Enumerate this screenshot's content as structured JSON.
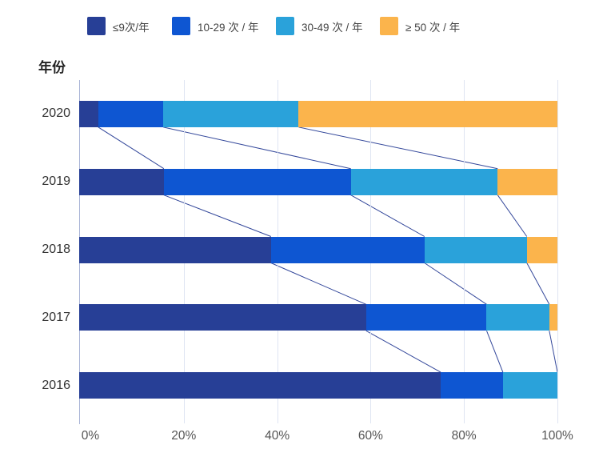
{
  "chart_data": {
    "type": "bar",
    "variant": "horizontal-stacked-percentage-with-flow-connectors",
    "title": "",
    "axis_title": "年份",
    "categories": [
      "2020",
      "2019",
      "2018",
      "2017",
      "2016"
    ],
    "series": [
      {
        "name": "≤9次/年",
        "color": "#273F96",
        "values": [
          4.0,
          17.7,
          40.1,
          60.0,
          75.6
        ]
      },
      {
        "name": "10-29 次 / 年",
        "color": "#0E56D2",
        "values": [
          13.6,
          39.1,
          32.1,
          25.2,
          13.0
        ]
      },
      {
        "name": "30-49 次 / 年",
        "color": "#2AA2DA",
        "values": [
          28.3,
          30.7,
          21.4,
          13.1,
          11.4
        ]
      },
      {
        "name": "≥ 50 次 / 年",
        "color": "#FBB44C",
        "values": [
          54.1,
          12.5,
          6.4,
          1.7,
          0.0
        ]
      }
    ],
    "x_ticks": [
      "0%",
      "20%",
      "40%",
      "60%",
      "80%",
      "100%"
    ],
    "xlim": [
      0,
      100
    ],
    "grid": true,
    "legend_position": "top",
    "connector_color": "#34489B",
    "axis_line_color": "#A9B4D6",
    "grid_color": "#DFE5F2",
    "tick_label_color": "#555555",
    "category_label_color": "#333333",
    "background": "#FFFFFF"
  }
}
